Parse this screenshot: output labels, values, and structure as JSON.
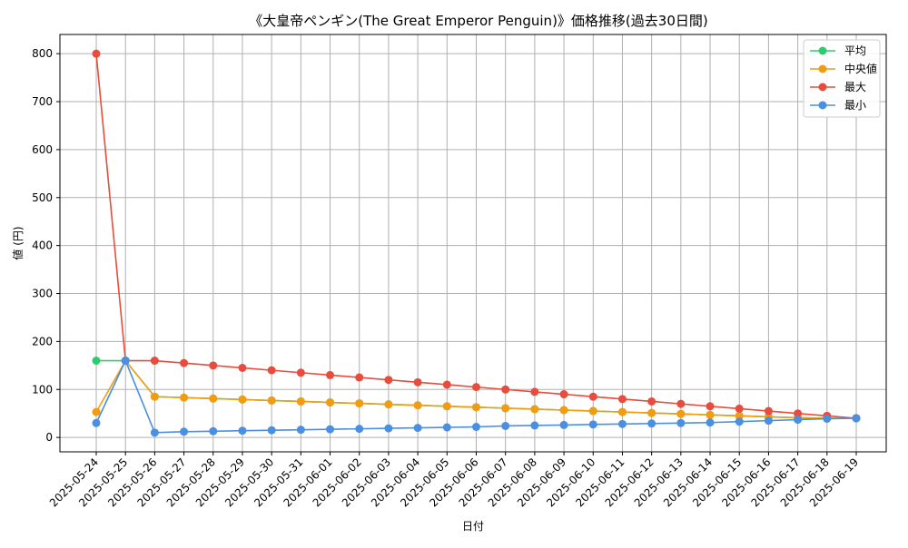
{
  "chart_data": {
    "type": "line",
    "title": "《大皇帝ペンギン(The Great Emperor Penguin)》価格推移(過去30日間)",
    "xlabel": "日付",
    "ylabel": "値 (円)",
    "ylim": [
      -30,
      840
    ],
    "yticks": [
      0,
      100,
      200,
      300,
      400,
      500,
      600,
      700,
      800
    ],
    "grid": true,
    "legend_position": "top-right",
    "categories": [
      "2025-05-24",
      "2025-05-25",
      "2025-05-26",
      "2025-05-27",
      "2025-05-28",
      "2025-05-29",
      "2025-05-30",
      "2025-05-31",
      "2025-06-01",
      "2025-06-02",
      "2025-06-03",
      "2025-06-04",
      "2025-06-05",
      "2025-06-06",
      "2025-06-07",
      "2025-06-08",
      "2025-06-09",
      "2025-06-10",
      "2025-06-11",
      "2025-06-12",
      "2025-06-13",
      "2025-06-14",
      "2025-06-15",
      "2025-06-16",
      "2025-06-17",
      "2025-06-18",
      "2025-06-19"
    ],
    "series": [
      {
        "name": "平均",
        "color": "#2ecc71",
        "values": [
          160,
          160,
          85,
          83,
          81,
          79,
          77,
          75,
          73,
          71,
          69,
          67,
          65,
          63,
          61,
          59,
          57,
          55,
          53,
          51,
          49,
          47,
          45,
          43,
          41,
          40,
          40
        ]
      },
      {
        "name": "中央値",
        "color": "#f39c12",
        "values": [
          53,
          160,
          85,
          83,
          81,
          79,
          77,
          75,
          73,
          71,
          69,
          67,
          65,
          63,
          61,
          59,
          57,
          55,
          53,
          51,
          49,
          47,
          45,
          43,
          41,
          40,
          40
        ]
      },
      {
        "name": "最大",
        "color": "#e74c3c",
        "values": [
          800,
          160,
          160,
          155,
          150,
          145,
          140,
          135,
          130,
          125,
          120,
          115,
          110,
          105,
          100,
          95,
          90,
          85,
          80,
          75,
          70,
          65,
          60,
          55,
          50,
          45,
          40
        ]
      },
      {
        "name": "最小",
        "color": "#4a90e2",
        "values": [
          30,
          160,
          10,
          12,
          13,
          14,
          15,
          16,
          17,
          18,
          19,
          20,
          21,
          22,
          24,
          25,
          26,
          27,
          28,
          29,
          30,
          31,
          33,
          35,
          37,
          39,
          40
        ]
      }
    ]
  }
}
